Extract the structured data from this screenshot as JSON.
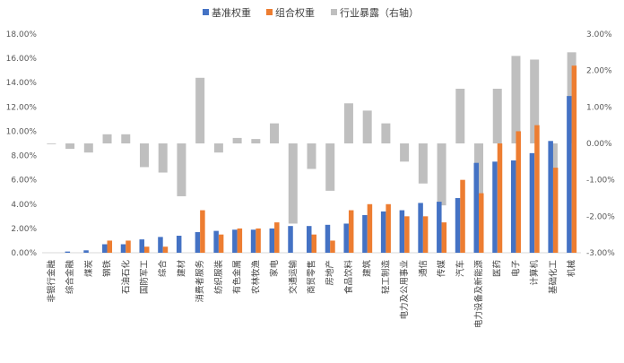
{
  "chart_data": {
    "type": "bar",
    "legend_position": "top",
    "grid": false,
    "categories": [
      "非银行金融",
      "综合金融",
      "煤炭",
      "钢铁",
      "石油石化",
      "国防军工",
      "综合",
      "建材",
      "消费者服务",
      "纺织服装",
      "有色金属",
      "农林牧渔",
      "家电",
      "交通运输",
      "商贸零售",
      "房地产",
      "食品饮料",
      "建筑",
      "轻工制造",
      "电力及公用事业",
      "通信",
      "传媒",
      "汽车",
      "电力设备及新能源",
      "医药",
      "电子",
      "计算机",
      "基础化工",
      "机械"
    ],
    "series": [
      {
        "name": "基准权重",
        "axis": "left",
        "color": "#4472C4",
        "values": [
          0.0,
          0.1,
          0.2,
          0.7,
          0.7,
          1.1,
          1.3,
          1.4,
          1.7,
          1.8,
          1.9,
          1.9,
          2.0,
          2.2,
          2.2,
          2.3,
          2.4,
          3.1,
          3.4,
          3.5,
          4.1,
          4.2,
          4.5,
          7.4,
          7.5,
          7.6,
          8.2,
          9.2,
          12.9
        ]
      },
      {
        "name": "组合权重",
        "axis": "left",
        "color": "#ED7D31",
        "values": [
          0.0,
          0.0,
          0.0,
          1.0,
          1.0,
          0.5,
          0.5,
          0.0,
          3.5,
          1.5,
          2.0,
          2.0,
          2.5,
          0.0,
          1.5,
          1.0,
          3.5,
          4.0,
          4.0,
          3.0,
          3.0,
          2.5,
          6.0,
          4.9,
          9.0,
          10.0,
          10.5,
          7.0,
          15.4
        ]
      },
      {
        "name": "行业暴露（右轴）",
        "axis": "right",
        "color": "#BFBFBF",
        "values": [
          -0.02,
          -0.15,
          -0.25,
          0.25,
          0.25,
          -0.65,
          -0.8,
          -1.45,
          1.8,
          -0.25,
          0.15,
          0.12,
          0.55,
          -2.2,
          -0.7,
          -1.3,
          1.1,
          0.9,
          0.55,
          -0.5,
          -1.1,
          -1.7,
          1.5,
          -2.5,
          1.5,
          2.4,
          2.3,
          -2.2,
          2.5
        ]
      }
    ],
    "y_left": {
      "min": 0,
      "max": 18,
      "step": 2,
      "tick_labels": [
        "0.00%",
        "2.00%",
        "4.00%",
        "6.00%",
        "8.00%",
        "10.00%",
        "12.00%",
        "14.00%",
        "16.00%",
        "18.00%"
      ]
    },
    "y_right": {
      "min": -3,
      "max": 3,
      "step": 1,
      "tick_labels": [
        "-3.00%",
        "-2.00%",
        "-1.00%",
        "0.00%",
        "1.00%",
        "2.00%",
        "3.00%"
      ]
    }
  }
}
